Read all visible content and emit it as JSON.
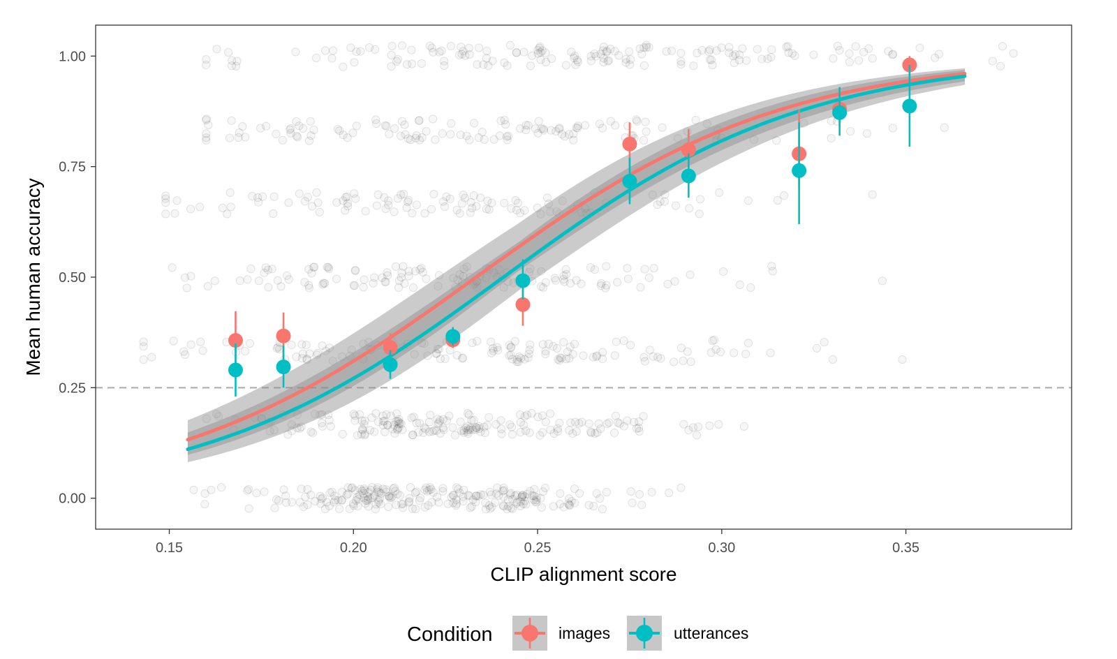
{
  "chart_data": {
    "type": "scatter",
    "xlabel": "CLIP alignment score",
    "ylabel": "Mean human accuracy",
    "xlim": [
      0.13,
      0.395
    ],
    "ylim": [
      -0.07,
      1.07
    ],
    "x_ticks": [
      0.15,
      0.2,
      0.25,
      0.3,
      0.35
    ],
    "x_tick_labels": [
      "0.15",
      "0.20",
      "0.25",
      "0.30",
      "0.35"
    ],
    "y_ticks": [
      0.0,
      0.25,
      0.5,
      0.75,
      1.0
    ],
    "y_tick_labels": [
      "0.00",
      "0.25",
      "0.50",
      "0.75",
      "1.00"
    ],
    "reference_line": {
      "y": 0.25,
      "style": "dashed",
      "color": "#aaaaaa"
    },
    "legend": {
      "title": "Condition",
      "position": "bottom"
    },
    "series": [
      {
        "name": "images",
        "color": "#F8766D",
        "points": [
          {
            "x": 0.168,
            "y": 0.357,
            "lo": 0.29,
            "hi": 0.423
          },
          {
            "x": 0.181,
            "y": 0.367,
            "lo": 0.31,
            "hi": 0.42
          },
          {
            "x": 0.21,
            "y": 0.341,
            "lo": 0.31,
            "hi": 0.373
          },
          {
            "x": 0.227,
            "y": 0.358,
            "lo": 0.34,
            "hi": 0.375
          },
          {
            "x": 0.246,
            "y": 0.438,
            "lo": 0.39,
            "hi": 0.48
          },
          {
            "x": 0.275,
            "y": 0.801,
            "lo": 0.75,
            "hi": 0.85
          },
          {
            "x": 0.291,
            "y": 0.788,
            "lo": 0.74,
            "hi": 0.835
          },
          {
            "x": 0.321,
            "y": 0.779,
            "lo": 0.7,
            "hi": 0.88
          },
          {
            "x": 0.332,
            "y": 0.88,
            "lo": 0.84,
            "hi": 0.92
          },
          {
            "x": 0.351,
            "y": 0.98,
            "lo": 0.955,
            "hi": 1.0
          }
        ],
        "fit": {
          "intercept": -5.6,
          "slope": 24.0
        }
      },
      {
        "name": "utterances",
        "color": "#00BFC4",
        "points": [
          {
            "x": 0.168,
            "y": 0.29,
            "lo": 0.23,
            "hi": 0.35
          },
          {
            "x": 0.181,
            "y": 0.297,
            "lo": 0.25,
            "hi": 0.345
          },
          {
            "x": 0.21,
            "y": 0.302,
            "lo": 0.27,
            "hi": 0.335
          },
          {
            "x": 0.227,
            "y": 0.366,
            "lo": 0.345,
            "hi": 0.387
          },
          {
            "x": 0.246,
            "y": 0.492,
            "lo": 0.45,
            "hi": 0.54
          },
          {
            "x": 0.275,
            "y": 0.717,
            "lo": 0.665,
            "hi": 0.77
          },
          {
            "x": 0.291,
            "y": 0.729,
            "lo": 0.68,
            "hi": 0.78
          },
          {
            "x": 0.321,
            "y": 0.741,
            "lo": 0.62,
            "hi": 0.85
          },
          {
            "x": 0.332,
            "y": 0.872,
            "lo": 0.82,
            "hi": 0.93
          },
          {
            "x": 0.351,
            "y": 0.887,
            "lo": 0.795,
            "hi": 0.98
          }
        ],
        "fit": {
          "intercept": -5.85,
          "slope": 24.3
        }
      }
    ],
    "fit_range": [
      0.155,
      0.366
    ],
    "ribbon_halfwidth_logit": 0.22,
    "raw_points": {
      "description_levels": [
        0.0,
        0.167,
        0.333,
        0.5,
        0.667,
        0.833,
        1.0
      ],
      "groups": [
        {
          "level": 0.0,
          "x_range": [
            0.142,
            0.29
          ],
          "count": 230,
          "center": 0.225
        },
        {
          "level": 0.167,
          "x_range": [
            0.16,
            0.32
          ],
          "count": 190,
          "center": 0.225
        },
        {
          "level": 0.333,
          "x_range": [
            0.143,
            0.37
          ],
          "count": 140,
          "center": 0.235
        },
        {
          "level": 0.5,
          "x_range": [
            0.15,
            0.35
          ],
          "count": 130,
          "center": 0.225
        },
        {
          "level": 0.667,
          "x_range": [
            0.149,
            0.36
          ],
          "count": 110,
          "center": 0.22
        },
        {
          "level": 0.833,
          "x_range": [
            0.16,
            0.372
          ],
          "count": 130,
          "center": 0.23
        },
        {
          "level": 1.0,
          "x_range": [
            0.16,
            0.382
          ],
          "count": 160,
          "center": 0.27
        }
      ],
      "color": "#000000",
      "opacity": 0.06
    }
  }
}
